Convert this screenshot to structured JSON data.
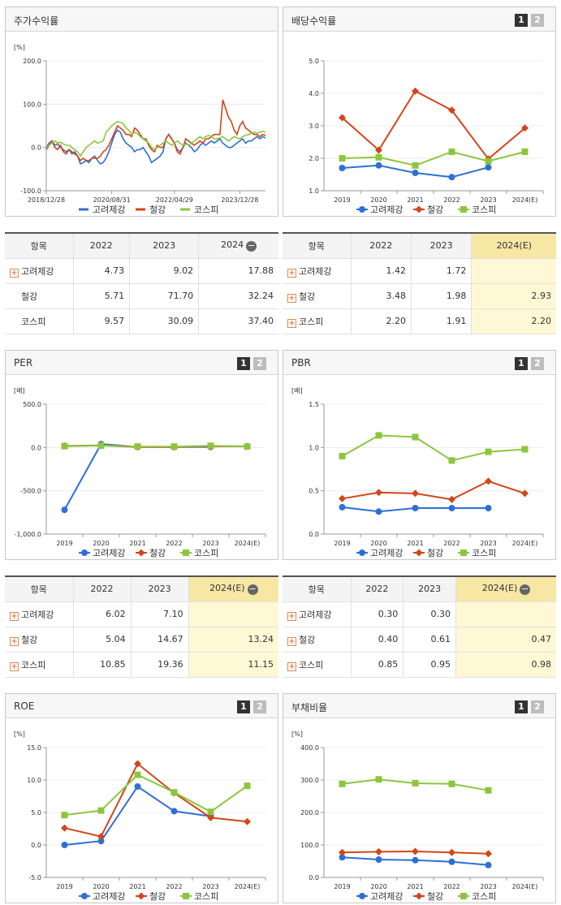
{
  "pager": {
    "p1": "1",
    "p2": "2"
  },
  "legend_icons": {
    "marker_circle": "circle-marker-icon",
    "marker_diamond": "diamond-marker-icon",
    "marker_square": "square-marker-icon"
  },
  "colors": {
    "blue": "#2e6fd6",
    "red": "#d24619",
    "green": "#8cc63e"
  },
  "panels": [
    {
      "id": "stock-return",
      "title": "주가수익률",
      "unit": "[%]",
      "has_pager": false
    },
    {
      "id": "dividend-yield",
      "title": "배당수익률",
      "unit": "",
      "has_pager": true
    },
    {
      "id": "per",
      "title": "PER",
      "unit": "[배]",
      "has_pager": true
    },
    {
      "id": "pbr",
      "title": "PBR",
      "unit": "[배]",
      "has_pager": true
    },
    {
      "id": "roe",
      "title": "ROE",
      "unit": "[%]",
      "has_pager": true
    },
    {
      "id": "debt-ratio",
      "title": "부채비율",
      "unit": "[%]",
      "has_pager": true
    }
  ],
  "tables": [
    {
      "id": "stock-return-table",
      "headers": [
        "항목",
        "2022",
        "2023",
        "2024"
      ],
      "minus": true,
      "rows": [
        {
          "name": "고려제강",
          "plus": true,
          "vals": [
            "4.73",
            "9.02",
            "17.88"
          ]
        },
        {
          "name": "철강",
          "plus": false,
          "vals": [
            "5.71",
            "71.70",
            "32.24"
          ]
        },
        {
          "name": "코스피",
          "plus": false,
          "vals": [
            "9.57",
            "30.09",
            "37.40"
          ]
        }
      ],
      "highlight_last": false
    },
    {
      "id": "dividend-table",
      "headers": [
        "항목",
        "2022",
        "2023",
        "2024(E)"
      ],
      "minus": false,
      "rows": [
        {
          "name": "고려제강",
          "plus": true,
          "vals": [
            "1.42",
            "1.72",
            ""
          ]
        },
        {
          "name": "철강",
          "plus": true,
          "vals": [
            "3.48",
            "1.98",
            "2.93"
          ]
        },
        {
          "name": "코스피",
          "plus": true,
          "vals": [
            "2.20",
            "1.91",
            "2.20"
          ]
        }
      ],
      "highlight_last": true
    },
    {
      "id": "per-table",
      "headers": [
        "항목",
        "2022",
        "2023",
        "2024(E)"
      ],
      "minus": true,
      "rows": [
        {
          "name": "고려제강",
          "plus": true,
          "vals": [
            "6.02",
            "7.10",
            ""
          ]
        },
        {
          "name": "철강",
          "plus": true,
          "vals": [
            "5.04",
            "14.67",
            "13.24"
          ]
        },
        {
          "name": "코스피",
          "plus": true,
          "vals": [
            "10.85",
            "19.36",
            "11.15"
          ]
        }
      ],
      "highlight_last": true
    },
    {
      "id": "pbr-table",
      "headers": [
        "항목",
        "2022",
        "2023",
        "2024(E)"
      ],
      "minus": true,
      "rows": [
        {
          "name": "고려제강",
          "plus": true,
          "vals": [
            "0.30",
            "0.30",
            ""
          ]
        },
        {
          "name": "철강",
          "plus": true,
          "vals": [
            "0.40",
            "0.61",
            "0.47"
          ]
        },
        {
          "name": "코스피",
          "plus": true,
          "vals": [
            "0.85",
            "0.95",
            "0.98"
          ]
        }
      ],
      "highlight_last": true
    }
  ],
  "chart_data": [
    {
      "id": "stock-return",
      "type": "line",
      "ylim": [
        -100,
        200
      ],
      "yticks": [
        "200.0",
        "100.0",
        "0.0",
        "-100.0"
      ],
      "xticks": [
        "2018/12/28",
        "2020/08/31",
        "2022/04/29",
        "2023/12/28"
      ],
      "x_count": 78,
      "xtick_idx": [
        0,
        23,
        45,
        68
      ],
      "series": [
        {
          "name": "고려제강",
          "color": "#2e6fd6",
          "values": [
            0,
            10,
            15,
            5,
            8,
            0,
            -5,
            -10,
            -5,
            -15,
            -10,
            -20,
            -38,
            -35,
            -30,
            -35,
            -25,
            -20,
            -30,
            -38,
            -35,
            -25,
            -10,
            10,
            30,
            40,
            35,
            20,
            10,
            5,
            0,
            -10,
            -5,
            -5,
            0,
            -10,
            -20,
            -35,
            -30,
            -25,
            -20,
            -10,
            20,
            30,
            20,
            10,
            -5,
            -10,
            0,
            10,
            5,
            0,
            -10,
            -5,
            5,
            10,
            5,
            10,
            15,
            10,
            15,
            20,
            10,
            5,
            0,
            0,
            5,
            10,
            15,
            20,
            10,
            15,
            15,
            20,
            25,
            20,
            25,
            22
          ]
        },
        {
          "name": "철강",
          "color": "#d24619",
          "values": [
            -5,
            5,
            15,
            0,
            -5,
            5,
            -10,
            -15,
            -5,
            -10,
            -15,
            -20,
            -30,
            -25,
            -30,
            -30,
            -25,
            -25,
            -25,
            -20,
            -10,
            -5,
            5,
            20,
            35,
            50,
            45,
            40,
            30,
            30,
            25,
            45,
            40,
            30,
            20,
            20,
            5,
            -5,
            -10,
            5,
            0,
            0,
            20,
            30,
            20,
            10,
            -10,
            -15,
            0,
            20,
            15,
            10,
            5,
            10,
            15,
            10,
            20,
            20,
            25,
            30,
            30,
            30,
            110,
            90,
            70,
            60,
            40,
            30,
            50,
            60,
            45,
            40,
            35,
            30,
            30,
            25,
            30,
            28
          ]
        },
        {
          "name": "코스피",
          "color": "#8cc63e",
          "values": [
            0,
            5,
            10,
            15,
            10,
            12,
            8,
            5,
            5,
            0,
            -5,
            -10,
            -20,
            -10,
            0,
            5,
            10,
            15,
            10,
            12,
            15,
            35,
            42,
            50,
            55,
            60,
            58,
            55,
            45,
            40,
            30,
            35,
            32,
            25,
            20,
            15,
            10,
            0,
            -5,
            0,
            5,
            10,
            15,
            10,
            5,
            10,
            15,
            10,
            5,
            8,
            5,
            10,
            15,
            20,
            25,
            20,
            25,
            28,
            25,
            20,
            20,
            22,
            25,
            20,
            15,
            20,
            25,
            22,
            20,
            25,
            28,
            30,
            32,
            35,
            33,
            35,
            37,
            35
          ]
        }
      ]
    },
    {
      "id": "dividend-yield",
      "type": "line",
      "categories": [
        "2019",
        "2020",
        "2021",
        "2022",
        "2023",
        "2024(E)"
      ],
      "ylim": [
        1.0,
        5.0
      ],
      "yticks": [
        "5.0",
        "4.0",
        "3.0",
        "2.0",
        "1.0"
      ],
      "series": [
        {
          "name": "고려제강",
          "color": "#2e6fd6",
          "marker": "circle",
          "values": [
            1.7,
            1.78,
            1.55,
            1.42,
            1.72,
            null
          ]
        },
        {
          "name": "철강",
          "color": "#d24619",
          "marker": "diamond",
          "values": [
            3.25,
            2.25,
            4.07,
            3.48,
            1.98,
            2.93
          ]
        },
        {
          "name": "코스피",
          "color": "#8cc63e",
          "marker": "square",
          "values": [
            2.0,
            2.03,
            1.78,
            2.2,
            1.91,
            2.2
          ]
        }
      ]
    },
    {
      "id": "per",
      "type": "line",
      "categories": [
        "2019",
        "2020",
        "2021",
        "2022",
        "2023",
        "2024(E)"
      ],
      "ylim": [
        -1000,
        500
      ],
      "yticks": [
        "500.0",
        "0.0",
        "-500.0",
        "-1,000.0"
      ],
      "series": [
        {
          "name": "고려제강",
          "color": "#2e6fd6",
          "marker": "circle",
          "values": [
            -720,
            40,
            8,
            6.02,
            7.1,
            null
          ]
        },
        {
          "name": "철강",
          "color": "#d24619",
          "marker": "diamond",
          "values": [
            18,
            25,
            5,
            5.04,
            14.67,
            13.24
          ]
        },
        {
          "name": "코스피",
          "color": "#8cc63e",
          "marker": "square",
          "values": [
            15,
            22,
            12,
            10.85,
            19.36,
            11.15
          ]
        }
      ]
    },
    {
      "id": "pbr",
      "type": "line",
      "categories": [
        "2019",
        "2020",
        "2021",
        "2022",
        "2023",
        "2024(E)"
      ],
      "ylim": [
        0.0,
        1.5
      ],
      "yticks": [
        "1.5",
        "1.0",
        "0.5",
        "0.0"
      ],
      "series": [
        {
          "name": "고려제강",
          "color": "#2e6fd6",
          "marker": "circle",
          "values": [
            0.31,
            0.26,
            0.3,
            0.3,
            0.3,
            null
          ]
        },
        {
          "name": "철강",
          "color": "#d24619",
          "marker": "diamond",
          "values": [
            0.41,
            0.48,
            0.47,
            0.4,
            0.61,
            0.47
          ]
        },
        {
          "name": "코스피",
          "color": "#8cc63e",
          "marker": "square",
          "values": [
            0.9,
            1.14,
            1.12,
            0.85,
            0.95,
            0.98
          ]
        }
      ]
    },
    {
      "id": "roe",
      "type": "line",
      "categories": [
        "2019",
        "2020",
        "2021",
        "2022",
        "2023",
        "2024(E)"
      ],
      "ylim": [
        -5.0,
        15.0
      ],
      "yticks": [
        "15.0",
        "10.0",
        "5.0",
        "0.0",
        "-5.0"
      ],
      "series": [
        {
          "name": "고려제강",
          "color": "#2e6fd6",
          "marker": "circle",
          "values": [
            0.0,
            0.6,
            9.0,
            5.2,
            4.4,
            null
          ]
        },
        {
          "name": "철강",
          "color": "#d24619",
          "marker": "diamond",
          "values": [
            2.6,
            1.3,
            12.5,
            8.0,
            4.2,
            3.6
          ]
        },
        {
          "name": "코스피",
          "color": "#8cc63e",
          "marker": "square",
          "values": [
            4.6,
            5.3,
            10.8,
            8.1,
            5.1,
            9.1
          ]
        }
      ]
    },
    {
      "id": "debt-ratio",
      "type": "line",
      "categories": [
        "2019",
        "2020",
        "2021",
        "2022",
        "2023",
        "2024(E)"
      ],
      "ylim": [
        0.0,
        400.0
      ],
      "yticks": [
        "400.0",
        "300.0",
        "200.0",
        "100.0",
        "0.0"
      ],
      "series": [
        {
          "name": "고려제강",
          "color": "#2e6fd6",
          "marker": "circle",
          "values": [
            62,
            55,
            53,
            48,
            38,
            null
          ]
        },
        {
          "name": "철강",
          "color": "#d24619",
          "marker": "diamond",
          "values": [
            77,
            79,
            80,
            77,
            73,
            null
          ]
        },
        {
          "name": "코스피",
          "color": "#8cc63e",
          "marker": "square",
          "values": [
            288,
            302,
            290,
            288,
            268,
            null
          ]
        }
      ]
    }
  ]
}
